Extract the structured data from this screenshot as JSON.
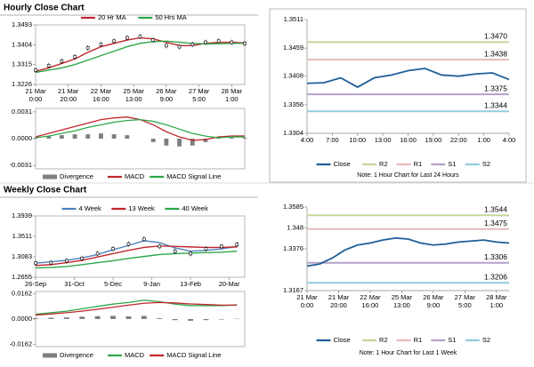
{
  "headings": [
    "Hourly Close Chart",
    "Weekly Close Chart"
  ],
  "chart_data": [
    {
      "type": "line",
      "x": [
        0,
        8,
        16,
        24,
        32,
        40,
        48,
        56,
        64,
        72,
        80,
        88,
        96,
        104,
        112,
        120,
        128
      ],
      "xlim": [
        0,
        128
      ],
      "xticks": [
        {
          "value": 0,
          "label": "21 Mar\n0:00"
        },
        {
          "value": 20,
          "label": "21 Mar\n20:00"
        },
        {
          "value": 40,
          "label": "22 Mar\n16:00"
        },
        {
          "value": 60,
          "label": "25 Mar\n13:00"
        },
        {
          "value": 80,
          "label": "26 Mar\n9:00"
        },
        {
          "value": 100,
          "label": "27 Mar\n5:00"
        },
        {
          "value": 120,
          "label": "28 Mar\n1:00"
        }
      ],
      "ylim": [
        1.3226,
        1.3493
      ],
      "yticks": [
        1.3226,
        1.3315,
        1.3404,
        1.3493
      ],
      "close": [
        1.329,
        1.331,
        1.333,
        1.335,
        1.339,
        1.3405,
        1.342,
        1.3435,
        1.344,
        1.3425,
        1.34,
        1.3395,
        1.3405,
        1.3415,
        1.342,
        1.3415,
        1.341
      ],
      "close_color": "#000000",
      "series": [
        {
          "name": "20 Hr MA",
          "color": "#c0272d",
          "values": [
            1.3285,
            1.33,
            1.332,
            1.334,
            1.337,
            1.3395,
            1.341,
            1.3425,
            1.3435,
            1.343,
            1.3415,
            1.34,
            1.34,
            1.341,
            1.3415,
            1.3415,
            1.3412
          ]
        },
        {
          "name": "50 Hrs MA",
          "color": "#2ea84a",
          "values": [
            1.328,
            1.329,
            1.33,
            1.3315,
            1.3335,
            1.3355,
            1.3375,
            1.3395,
            1.341,
            1.3418,
            1.342,
            1.3415,
            1.341,
            1.3408,
            1.3408,
            1.341,
            1.341
          ]
        }
      ]
    },
    {
      "type": "macd",
      "x": [
        0,
        8,
        16,
        24,
        32,
        40,
        48,
        56,
        64,
        72,
        80,
        88,
        96,
        104,
        112,
        120,
        128
      ],
      "xlim": [
        0,
        128
      ],
      "ylim": [
        -0.0035,
        0.0035
      ],
      "yticks": [
        0.0031,
        {
          "value": 0,
          "label": "0.0000"
        },
        -0.0031
      ],
      "series": [
        {
          "name": "Divergence",
          "color": "#7f7f7f",
          "style": "bar",
          "values": [
            0.0001,
            0.0003,
            0.0004,
            0.0005,
            0.0005,
            0.0006,
            0.0005,
            0.0004,
            0,
            -0.0004,
            -0.0008,
            -0.0009,
            -0.0008,
            -0.0004,
            0.0001,
            0.0001,
            0.0001
          ]
        },
        {
          "name": "MACD",
          "color": "#c0272d",
          "values": [
            0.0002,
            0.0006,
            0.001,
            0.0014,
            0.0018,
            0.0022,
            0.0024,
            0.0025,
            0.0022,
            0.0016,
            0.0008,
            0.0002,
            -0.0002,
            -0.0001,
            0.0002,
            0.0003,
            0.0003
          ]
        },
        {
          "name": "MACD Signal Line",
          "color": "#2ea84a",
          "values": [
            0.0001,
            0.0003,
            0.0006,
            0.0009,
            0.0013,
            0.0016,
            0.0019,
            0.0021,
            0.0022,
            0.002,
            0.0016,
            0.0011,
            0.0006,
            0.0003,
            0.0001,
            0.0002,
            0.0002
          ]
        }
      ]
    },
    {
      "type": "pivot",
      "x": [
        0,
        2,
        4,
        6,
        8,
        10,
        12,
        14,
        16,
        18,
        20,
        22,
        24
      ],
      "xlim": [
        0,
        24
      ],
      "xticks": [
        {
          "value": 0,
          "label": "4:00"
        },
        {
          "value": 3,
          "label": "7:00"
        },
        {
          "value": 6,
          "label": "10:00"
        },
        {
          "value": 9,
          "label": "13:00"
        },
        {
          "value": 12,
          "label": "16:00"
        },
        {
          "value": 15,
          "label": "19:00"
        },
        {
          "value": 18,
          "label": "22:00"
        },
        {
          "value": 21,
          "label": "1:00"
        },
        {
          "value": 24,
          "label": "4:00"
        }
      ],
      "ylim": [
        1.3304,
        1.3511
      ],
      "yticks": [
        1.3304,
        1.3356,
        1.3408,
        1.3459,
        1.3511
      ],
      "series": [
        {
          "name": "Close",
          "color": "#1f5f99",
          "values": [
            1.3395,
            1.3396,
            1.3405,
            1.3388,
            1.3405,
            1.341,
            1.3418,
            1.3422,
            1.341,
            1.3408,
            1.3412,
            1.3414,
            1.3402
          ]
        }
      ],
      "levels": [
        {
          "name": "R2",
          "value": 1.347,
          "label": "1.3470",
          "color": "#c4d79b"
        },
        {
          "name": "R1",
          "value": 1.3438,
          "color": "#e6b9b8"
        },
        {
          "name": "S1",
          "value": 1.3375,
          "color": "#b3a2c7"
        },
        {
          "name": "S2",
          "value": 1.3344,
          "color": "#93cddd"
        }
      ],
      "note": "Note: 1 Hour Chart for Last 24 Hours"
    },
    {
      "type": "line",
      "x": [
        0,
        2,
        4,
        6,
        8,
        10,
        12,
        14,
        16,
        18,
        20,
        22,
        24,
        26
      ],
      "xlim": [
        0,
        27
      ],
      "xticks": [
        {
          "value": 0,
          "label": "26-Sep"
        },
        {
          "value": 5,
          "label": "31-Oct"
        },
        {
          "value": 10,
          "label": "5-Dec"
        },
        {
          "value": 15,
          "label": "9-Jan"
        },
        {
          "value": 20,
          "label": "13-Feb"
        },
        {
          "value": 25,
          "label": "20-Mar"
        }
      ],
      "ylim": [
        1.2655,
        1.3939
      ],
      "yticks": [
        1.2655,
        1.3083,
        1.3511,
        1.3939
      ],
      "close": [
        1.295,
        1.296,
        1.3,
        1.305,
        1.315,
        1.325,
        1.335,
        1.345,
        1.33,
        1.32,
        1.315,
        1.325,
        1.33,
        1.334
      ],
      "close_color": "#000000",
      "series": [
        {
          "name": "4 Week",
          "color": "#4f81bd",
          "values": [
            1.295,
            1.298,
            1.301,
            1.306,
            1.313,
            1.323,
            1.332,
            1.342,
            1.338,
            1.327,
            1.32,
            1.322,
            1.325,
            1.33
          ]
        },
        {
          "name": "13 Week",
          "color": "#c0272d",
          "values": [
            1.29,
            1.292,
            1.296,
            1.301,
            1.308,
            1.315,
            1.322,
            1.328,
            1.331,
            1.33,
            1.329,
            1.328,
            1.328,
            1.329
          ]
        },
        {
          "name": "40 Week",
          "color": "#2ea84a",
          "values": [
            1.285,
            1.286,
            1.288,
            1.292,
            1.296,
            1.3,
            1.305,
            1.309,
            1.313,
            1.315,
            1.316,
            1.317,
            1.318,
            1.32
          ]
        }
      ]
    },
    {
      "type": "macd",
      "x": [
        0,
        2,
        4,
        6,
        8,
        10,
        12,
        14,
        16,
        18,
        20,
        22,
        24,
        26
      ],
      "xlim": [
        0,
        27
      ],
      "ylim": [
        -0.0175,
        0.0175
      ],
      "yticks": [
        0.0162,
        {
          "value": 0,
          "label": "0.0000"
        },
        -0.0162
      ],
      "series": [
        {
          "name": "Divergence",
          "color": "#7f7f7f",
          "style": "bar",
          "values": [
            0.0005,
            0.0008,
            0.001,
            0.0015,
            0.0018,
            0.002,
            0.0017,
            0.002,
            0.0005,
            -0.0007,
            -0.0011,
            -0.0007,
            -0.0003,
            0.0002
          ]
        },
        {
          "name": "MACD",
          "color": "#2ea84a",
          "values": [
            0.003,
            0.004,
            0.005,
            0.0065,
            0.008,
            0.0095,
            0.0105,
            0.012,
            0.011,
            0.0095,
            0.0085,
            0.0085,
            0.0085,
            0.009
          ]
        },
        {
          "name": "MACD Signal Line",
          "color": "#c0272d",
          "values": [
            0.0025,
            0.0032,
            0.004,
            0.005,
            0.0062,
            0.0075,
            0.0088,
            0.01,
            0.0105,
            0.0102,
            0.0096,
            0.0092,
            0.0088,
            0.0088
          ]
        }
      ]
    },
    {
      "type": "pivot",
      "x": [
        0,
        8,
        16,
        24,
        32,
        40,
        48,
        56,
        64,
        72,
        80,
        88,
        96,
        104,
        112,
        120,
        128
      ],
      "xlim": [
        0,
        128
      ],
      "xticks": [
        {
          "value": 0,
          "label": "21 Mar\n0:00"
        },
        {
          "value": 20,
          "label": "21 Mar\n20:00"
        },
        {
          "value": 40,
          "label": "22 Mar\n16:00"
        },
        {
          "value": 60,
          "label": "25 Mar\n13:00"
        },
        {
          "value": 80,
          "label": "26 Mar\n9:00"
        },
        {
          "value": 100,
          "label": "27 Mar\n5:00"
        },
        {
          "value": 120,
          "label": "28 Mar\n1:00"
        }
      ],
      "ylim": [
        1.3167,
        1.3585
      ],
      "yticks": [
        1.3167,
        1.3376,
        1.348,
        1.3585
      ],
      "series": [
        {
          "name": "Close",
          "color": "#1f5f99",
          "values": [
            1.329,
            1.33,
            1.333,
            1.337,
            1.3395,
            1.3405,
            1.342,
            1.343,
            1.3425,
            1.3405,
            1.3395,
            1.34,
            1.341,
            1.3415,
            1.342,
            1.341,
            1.3405
          ]
        }
      ],
      "levels": [
        {
          "name": "R2",
          "value": 1.3544,
          "color": "#c4d79b"
        },
        {
          "name": "R1",
          "value": 1.3475,
          "color": "#e6b9b8"
        },
        {
          "name": "S1",
          "value": 1.3306,
          "color": "#b3a2c7"
        },
        {
          "name": "S2",
          "value": 1.3206,
          "color": "#93cddd"
        }
      ],
      "note": "Note: 1 Hour Chart for Last 1 Week"
    }
  ]
}
